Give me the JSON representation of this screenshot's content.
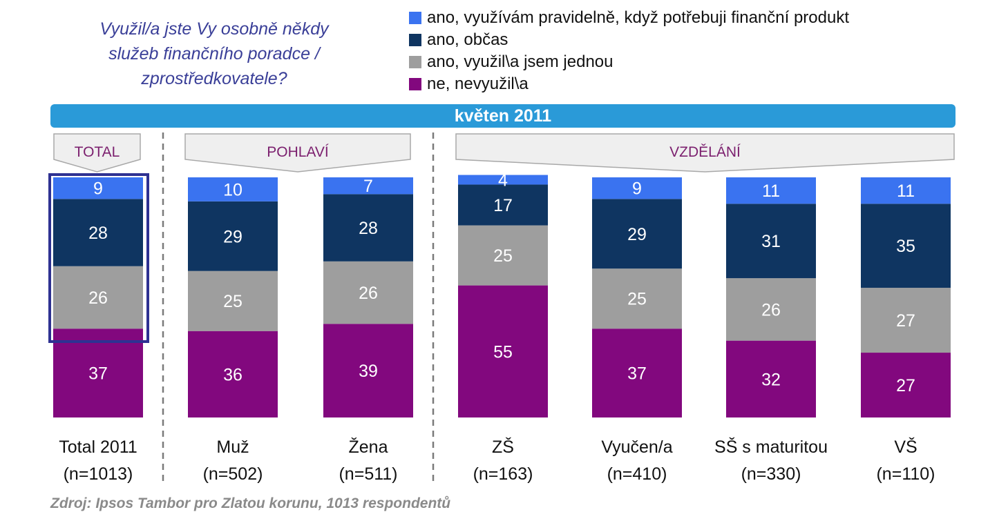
{
  "question": "Využil/a jste Vy osobně někdy\nslužeb finančního poradce /\nzprostředkovatele?",
  "banner": "květen 2011",
  "source": "Zdroj: Ipsos Tambor pro Zlatou korunu, 1013 respondentů",
  "colors": {
    "pravidelne": "#3a73f0",
    "obcas": "#0f3561",
    "jednou": "#9e9e9e",
    "ne": "#82087e",
    "banner": "#2a9ad8",
    "highlight": "#2e3192"
  },
  "chart_data": {
    "type": "bar",
    "stacked": true,
    "orientation": "vertical",
    "ylim": [
      0,
      100
    ],
    "grid": false,
    "legend_position": "top-right",
    "groups": [
      {
        "label": "TOTAL",
        "categories": [
          "Total 2011"
        ]
      },
      {
        "label": "POHLAVÍ",
        "categories": [
          "Muž",
          "Žena"
        ]
      },
      {
        "label": "VZDĚLÁNÍ",
        "categories": [
          "ZŠ",
          "Vyučen/a",
          "SŠ s maturitou",
          "VŠ"
        ]
      }
    ],
    "categories": [
      "Total 2011",
      "Muž",
      "Žena",
      "ZŠ",
      "Vyučen/a",
      "SŠ s maturitou",
      "VŠ"
    ],
    "sample_sizes": [
      "(n=1013)",
      "(n=502)",
      "(n=511)",
      "(n=163)",
      "(n=410)",
      "(n=330)",
      "(n=110)"
    ],
    "series": [
      {
        "name": "ano, využívám pravidelně, když potřebuji finanční produkt",
        "key": "pravidelne",
        "values": [
          9,
          10,
          7,
          4,
          9,
          11,
          11
        ]
      },
      {
        "name": "ano, občas",
        "key": "obcas",
        "values": [
          28,
          29,
          28,
          17,
          29,
          31,
          35
        ]
      },
      {
        "name": "ano, využil\\a jsem jednou",
        "key": "jednou",
        "values": [
          26,
          25,
          26,
          25,
          25,
          26,
          27
        ]
      },
      {
        "name": "ne, nevyužil\\a",
        "key": "ne",
        "values": [
          37,
          36,
          39,
          55,
          37,
          32,
          27
        ]
      }
    ],
    "highlighted_category": "Total 2011"
  }
}
